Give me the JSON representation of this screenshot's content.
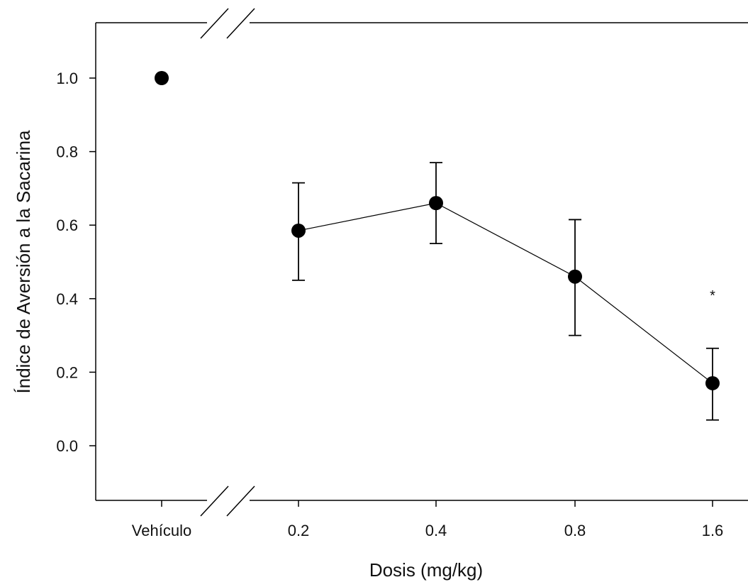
{
  "chart_data": {
    "type": "scatter",
    "xlabel": "Dosis (mg/kg)",
    "ylabel": "Índice de Aversión a la Sacarina",
    "ylim": [
      -0.15,
      1.15
    ],
    "yticks": [
      "0.0",
      "0.2",
      "0.4",
      "0.6",
      "0.8",
      "1.0"
    ],
    "ytick_values": [
      0.0,
      0.2,
      0.4,
      0.6,
      0.8,
      1.0
    ],
    "categories": [
      "Vehículo",
      "0.2",
      "0.4",
      "0.8",
      "1.6"
    ],
    "axis_break": true,
    "grid": false,
    "series": [
      {
        "values": [
          1.0,
          0.585,
          0.66,
          0.46,
          0.17
        ],
        "error_upper": [
          null,
          0.715,
          0.77,
          0.615,
          0.265
        ],
        "error_lower": [
          null,
          0.45,
          0.55,
          0.3,
          0.07
        ],
        "connected_from_index": 1,
        "color": "#000000"
      }
    ],
    "annotations": [
      {
        "category": "1.6",
        "y": 0.415,
        "text": "*"
      }
    ]
  }
}
